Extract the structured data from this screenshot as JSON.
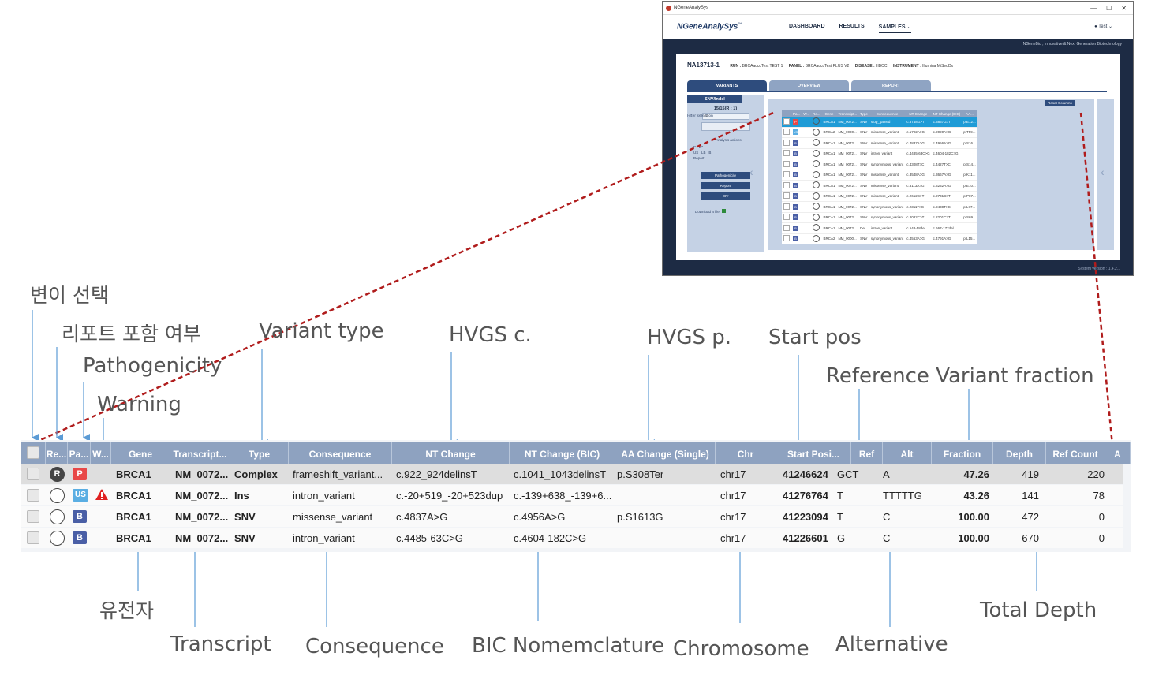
{
  "inset": {
    "window_title": "NGeneAnalySys",
    "window_controls": [
      "—",
      "☐",
      "✕"
    ],
    "logo": "NGeneAnalySys",
    "logo_tm": "™",
    "nav": [
      "DASHBOARD",
      "RESULTS",
      "SAMPLES"
    ],
    "nav_dropdown": "⌄",
    "user": "Test",
    "tagline": "NGeneBio , Innovative & Next Generation Biotechnology",
    "sample_id": "NA13713-1",
    "run_label": "RUN :",
    "run": "BRCAaccuTest TEST 1",
    "panel_label": "PANEL :",
    "panel": "BRCAaccuTest PLUS V2",
    "disease_label": "DISEASE :",
    "disease": "HBOC",
    "instrument_label": "INSTRUMENT :",
    "instrument": "Illumina MiSeqDx",
    "tabs": [
      "VARIANTS",
      "OVERVIEW",
      "REPORT"
    ],
    "side": {
      "header": "SNV/Indel",
      "count": "15/15(R : 1)",
      "filter_label": "Filter selection",
      "filter_value": "All",
      "actions_label": "Analysis actions",
      "actions": [
        "P",
        "LP",
        "US",
        "LB",
        "B",
        "Report"
      ],
      "buttons": [
        "Pathogenicity",
        "Report",
        "IGV"
      ],
      "download": "Download a file"
    },
    "reset_columns": "Reset Columns",
    "version": "System version : 1.4.2.1",
    "mini_headers": [
      "",
      "Pa...",
      "W...",
      "Re...",
      "Gene",
      "Transcript...",
      "Type",
      "Consequence",
      "NT Change",
      "NT Change (BIC)",
      "AA..."
    ],
    "mini_rows": [
      {
        "path": "P",
        "rep": "R",
        "gene": "BRCA1",
        "tx": "NM_0072...",
        "type": "SNV",
        "cons": "stop_gained",
        "nt": "c.3748G>T",
        "bic": "c.3867G>T",
        "aa": "p.E12..."
      },
      {
        "path": "US",
        "rep": "",
        "gene": "BRCA2",
        "tx": "NM_0000...",
        "type": "SNV",
        "cons": "missense_variant",
        "nt": "c.1792A>G",
        "bic": "c.2020A>G",
        "aa": "p.T59..."
      },
      {
        "path": "B",
        "rep": "",
        "gene": "BRCA1",
        "tx": "NM_0072...",
        "type": "SNV",
        "cons": "missense_variant",
        "nt": "c.4837A>G",
        "bic": "c.4956A>G",
        "aa": "p.S16..."
      },
      {
        "path": "B",
        "rep": "",
        "gene": "BRCA1",
        "tx": "NM_0072...",
        "type": "SNV",
        "cons": "intron_variant",
        "nt": "c.4485-63C>G",
        "bic": "c.4604-182C>G",
        "aa": ""
      },
      {
        "path": "B",
        "rep": "",
        "gene": "BRCA1",
        "tx": "NM_0072...",
        "type": "SNV",
        "cons": "synonymous_variant",
        "nt": "c.4308T>C",
        "bic": "c.4427T>C",
        "aa": "p.S14..."
      },
      {
        "path": "B",
        "rep": "",
        "gene": "BRCA1",
        "tx": "NM_0072...",
        "type": "SNV",
        "cons": "missense_variant",
        "nt": "c.3548A>G",
        "bic": "c.3667A>G",
        "aa": "p.K11..."
      },
      {
        "path": "B",
        "rep": "",
        "gene": "BRCA1",
        "tx": "NM_0072...",
        "type": "SNV",
        "cons": "missense_variant",
        "nt": "c.3113A>G",
        "bic": "c.3232A>G",
        "aa": "p.E10..."
      },
      {
        "path": "B",
        "rep": "",
        "gene": "BRCA1",
        "tx": "NM_0072...",
        "type": "SNV",
        "cons": "missense_variant",
        "nt": "c.2612C>T",
        "bic": "c.2731C>T",
        "aa": "p.P87..."
      },
      {
        "path": "B",
        "rep": "",
        "gene": "BRCA1",
        "tx": "NM_0072...",
        "type": "SNV",
        "cons": "synonymous_variant",
        "nt": "c.2311T>C",
        "bic": "c.2430T>C",
        "aa": "p.L77..."
      },
      {
        "path": "B",
        "rep": "",
        "gene": "BRCA1",
        "tx": "NM_0072...",
        "type": "SNV",
        "cons": "synonymous_variant",
        "nt": "c.2082C>T",
        "bic": "c.2201C>T",
        "aa": "p.S69..."
      },
      {
        "path": "B",
        "rep": "",
        "gene": "BRCA1",
        "tx": "NM_0072...",
        "type": "Del",
        "cons": "intron_variant",
        "nt": "c.548-58del",
        "bic": "c.667-177del",
        "aa": ""
      },
      {
        "path": "B",
        "rep": "",
        "gene": "BRCA2",
        "tx": "NM_0000...",
        "type": "SNV",
        "cons": "synonymous_variant",
        "nt": "c.4563A>G",
        "bic": "c.4791A>G",
        "aa": "p.L15..."
      }
    ]
  },
  "grid": {
    "headers": [
      "",
      "Re...",
      "Pa...",
      "W...",
      "Gene",
      "Transcript...",
      "Type",
      "Consequence",
      "NT Change",
      "NT Change (BIC)",
      "AA Change (Single)",
      "Chr",
      "Start Posi...",
      "Ref",
      "Alt",
      "Fraction",
      "Depth",
      "Ref Count",
      "A"
    ],
    "rows": [
      {
        "report": "R",
        "path": "P",
        "warn": false,
        "gene": "BRCA1",
        "transcript": "NM_0072...",
        "type": "Complex",
        "consequence": "frameshift_variant...",
        "nt": "c.922_924delinsT",
        "bic": "c.1041_1043delinsT",
        "aa": "p.S308Ter",
        "chr": "chr17",
        "start": "41246624",
        "ref": "GCT",
        "alt": "A",
        "fraction": "47.26",
        "depth": "419",
        "refcount": "220"
      },
      {
        "report": "",
        "path": "US",
        "warn": true,
        "gene": "BRCA1",
        "transcript": "NM_0072...",
        "type": "Ins",
        "consequence": "intron_variant",
        "nt": "c.-20+519_-20+523dup",
        "bic": "c.-139+638_-139+6...",
        "aa": "",
        "chr": "chr17",
        "start": "41276764",
        "ref": "T",
        "alt": "TTTTTG",
        "fraction": "43.26",
        "depth": "141",
        "refcount": "78"
      },
      {
        "report": "",
        "path": "B",
        "warn": false,
        "gene": "BRCA1",
        "transcript": "NM_0072...",
        "type": "SNV",
        "consequence": "missense_variant",
        "nt": "c.4837A>G",
        "bic": "c.4956A>G",
        "aa": "p.S1613G",
        "chr": "chr17",
        "start": "41223094",
        "ref": "T",
        "alt": "C",
        "fraction": "100.00",
        "depth": "472",
        "refcount": "0"
      },
      {
        "report": "",
        "path": "B",
        "warn": false,
        "gene": "BRCA1",
        "transcript": "NM_0072...",
        "type": "SNV",
        "consequence": "intron_variant",
        "nt": "c.4485-63C>G",
        "bic": "c.4604-182C>G",
        "aa": "",
        "chr": "chr17",
        "start": "41226601",
        "ref": "G",
        "alt": "C",
        "fraction": "100.00",
        "depth": "670",
        "refcount": "0"
      }
    ]
  },
  "labels": {
    "select": "변이 선택",
    "report": "리포트 포함 여부",
    "pathogenicity": "Pathogenicity",
    "warning": "Warning",
    "variant_type": "Variant type",
    "hvgs_c": "HVGS c.",
    "hvgs_p": "HVGS p.",
    "start_pos": "Start pos",
    "ref_var_fraction": "Reference Variant fraction",
    "gene": "유전자",
    "transcript": "Transcript",
    "consequence": "Consequence",
    "bic": "BIC Nomemclature",
    "chromosome": "Chromosome",
    "alternative": "Alternative",
    "total_depth": "Total Depth"
  },
  "colors": {
    "header": "#8ea2c0",
    "selected_row": "#dedede",
    "pathogenic": "#e84848",
    "uncertain": "#5aaee3",
    "benign": "#4a5fa6",
    "connector": "#b01c1c",
    "arrow": "#5b9bd5"
  }
}
